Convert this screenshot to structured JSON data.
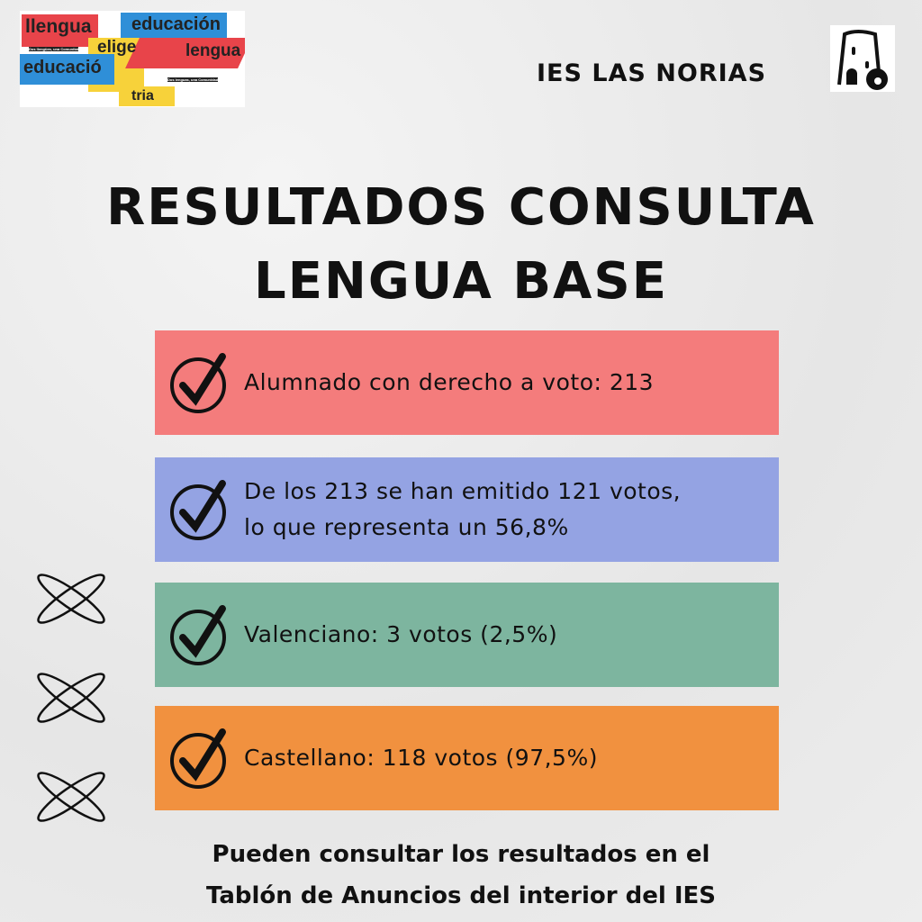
{
  "logo": {
    "words": [
      "llengua",
      "educación",
      "elige",
      "lengua",
      "educació",
      "tria"
    ],
    "taglines": [
      "Dos llengües, una Comunitat",
      "Dos lenguas, una Comunidad"
    ]
  },
  "header": {
    "school": "IES LAS NORIAS",
    "emblem_icon": "water-wheel-tower-icon"
  },
  "title": {
    "line1": "RESULTADOS CONSULTA",
    "line2": "LENGUA BASE"
  },
  "items": [
    {
      "lines": [
        "Alumnado con derecho a voto: 213"
      ],
      "color": "#f47c7c"
    },
    {
      "lines": [
        "De los 213 se han emitido 121 votos,",
        "lo que representa un 56,8%"
      ],
      "color": "#94a3e3"
    },
    {
      "lines": [
        "Valenciano: 3 votos (2,5%)"
      ],
      "color": "#7db59f"
    },
    {
      "lines": [
        "Castellano: 118 votos (97,5%)"
      ],
      "color": "#f1913f"
    }
  ],
  "footer": {
    "line1": "Pueden consultar los resultados en el",
    "line2": "Tablón de Anuncios del interior del IES"
  }
}
